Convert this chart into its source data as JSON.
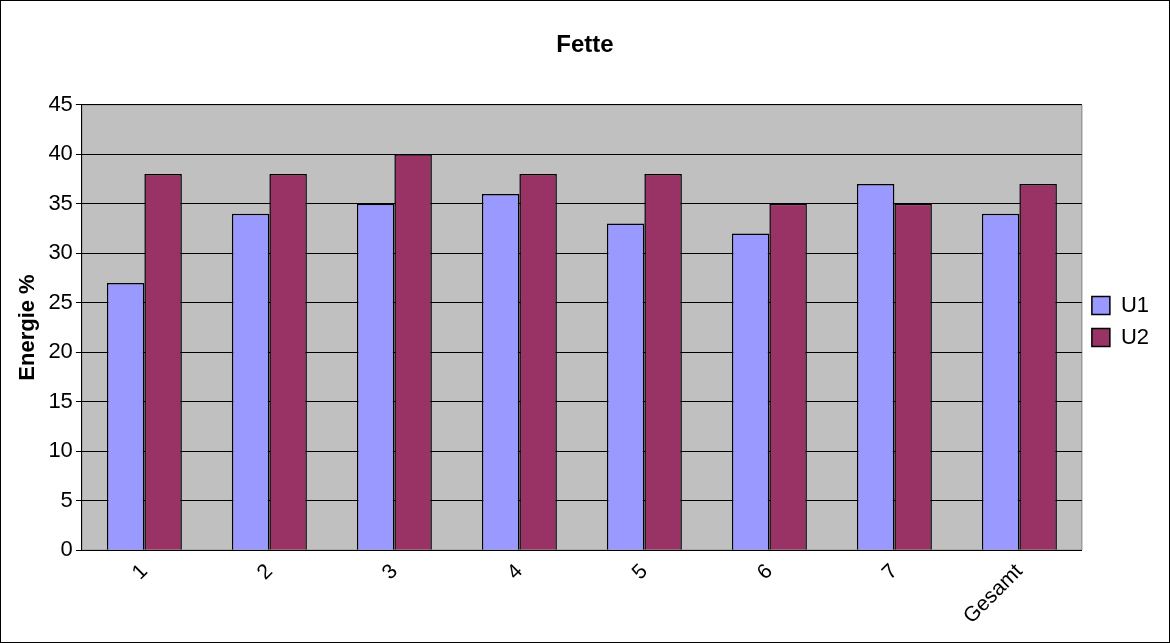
{
  "chart_data": {
    "type": "bar",
    "title": "Fette",
    "ylabel": "Energie %",
    "categories": [
      "1",
      "2",
      "3",
      "4",
      "5",
      "6",
      "7",
      "Gesamt"
    ],
    "series": [
      {
        "name": "U1",
        "color": "#9999ff",
        "values": [
          27,
          34,
          35,
          36,
          33,
          32,
          37,
          34
        ]
      },
      {
        "name": "U2",
        "color": "#993366",
        "values": [
          38,
          38,
          40,
          38,
          38,
          35,
          35,
          37
        ]
      }
    ],
    "ylim": [
      0,
      45
    ],
    "yticks": [
      0,
      5,
      10,
      15,
      20,
      25,
      30,
      35,
      40,
      45
    ],
    "grid": "y",
    "legend": "right"
  }
}
